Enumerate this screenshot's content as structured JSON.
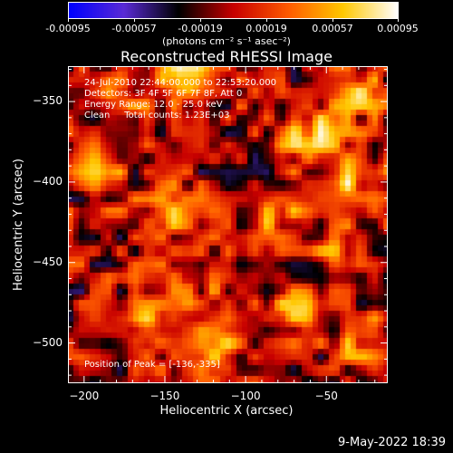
{
  "colorbar": {
    "ticks": [
      "-0.00095",
      "-0.00057",
      "-0.00019",
      "0.00019",
      "0.00057",
      "0.00095"
    ],
    "units": "(photons cm⁻² s⁻¹ asec⁻²)",
    "colormap": [
      "#0000ff",
      "#5a2bd6",
      "#000000",
      "#c80000",
      "#ff5a00",
      "#ffc800",
      "#ffffff"
    ]
  },
  "info": {
    "line1": "24-Jul-2010 22:44:00.000 to 22:53:20.000",
    "line2": "Detectors: 3F 4F 5F 6F 7F 8F, Att 0",
    "line3": "Energy Range: 12.0 - 25.0 keV",
    "line4": "Clean     Total counts: 1.23E+03",
    "peak": "Position of Peak = [-136,-335]"
  },
  "timestamp": "9-May-2022 18:39",
  "chart_data": {
    "type": "heatmap",
    "title": "Reconstructed RHESSI Image",
    "xlabel": "Heliocentric X (arcsec)",
    "ylabel": "Heliocentric Y (arcsec)",
    "xlim": [
      -210,
      -12
    ],
    "ylim": [
      -525,
      -328
    ],
    "xticks": [
      -200,
      -150,
      -100,
      -50
    ],
    "yticks": [
      -350,
      -400,
      -450,
      -500
    ],
    "zlim": [
      -0.00095,
      0.00095
    ],
    "peak": [
      -136,
      -335
    ],
    "hotspots": [
      {
        "x": -136,
        "y": -335,
        "value": 0.00095
      },
      {
        "x": -60,
        "y": -370,
        "value": 0.0007
      },
      {
        "x": -35,
        "y": -395,
        "value": 0.0006
      },
      {
        "x": -30,
        "y": -345,
        "value": 0.0005
      },
      {
        "x": -70,
        "y": -480,
        "value": 0.0006
      },
      {
        "x": -25,
        "y": -500,
        "value": 0.0005
      },
      {
        "x": -160,
        "y": -490,
        "value": 0.0006
      },
      {
        "x": -150,
        "y": -420,
        "value": 0.0005
      },
      {
        "x": -80,
        "y": -420,
        "value": 0.0005
      },
      {
        "x": -190,
        "y": -395,
        "value": 0.0004
      },
      {
        "x": -115,
        "y": -500,
        "value": 0.0005
      },
      {
        "x": -175,
        "y": -355,
        "value": 0.0004
      },
      {
        "x": -45,
        "y": -440,
        "value": 0.0004
      },
      {
        "x": -130,
        "y": -460,
        "value": 0.00035
      }
    ],
    "minimum": {
      "x": -175,
      "y": -483,
      "value": -0.00095
    }
  }
}
